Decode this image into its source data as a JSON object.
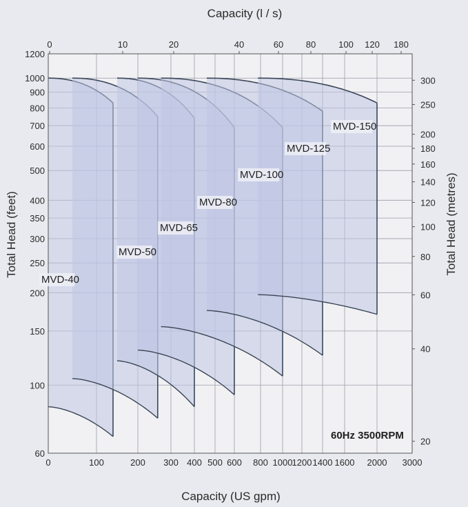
{
  "chart_data": {
    "type": "area",
    "title": "",
    "xlabel": "Capacity (US gpm)",
    "x2label": "Capacity (l / s)",
    "ylabel": "Total Head (feet)",
    "y2label": "Total Head (metres)",
    "annotation": "60Hz  3500RPM",
    "grid": true,
    "x_scale": "custom",
    "y_scale": "log",
    "xlim": [
      0,
      3000
    ],
    "ylim": [
      60,
      1200
    ],
    "x_ticks": [
      {
        "v": 0,
        "label": "0"
      },
      {
        "v": 100,
        "label": "100"
      },
      {
        "v": 200,
        "label": "200"
      },
      {
        "v": 300,
        "label": "300"
      },
      {
        "v": 400,
        "label": "400"
      },
      {
        "v": 500,
        "label": "500"
      },
      {
        "v": 600,
        "label": "600"
      },
      {
        "v": 800,
        "label": "800"
      },
      {
        "v": 1000,
        "label": "1000"
      },
      {
        "v": 1200,
        "label": "1200"
      },
      {
        "v": 1400,
        "label": "1400"
      },
      {
        "v": 1600,
        "label": "1600"
      },
      {
        "v": 2000,
        "label": "2000"
      },
      {
        "v": 3000,
        "label": "3000"
      }
    ],
    "x2_ticks": [
      {
        "v": 0,
        "label": "0"
      },
      {
        "v": 10,
        "label": "10"
      },
      {
        "v": 20,
        "label": "20"
      },
      {
        "v": 40,
        "label": "40"
      },
      {
        "v": 60,
        "label": "60"
      },
      {
        "v": 80,
        "label": "80"
      },
      {
        "v": 100,
        "label": "100"
      },
      {
        "v": 120,
        "label": "120"
      },
      {
        "v": 180,
        "label": "180"
      }
    ],
    "y_ticks": [
      60,
      100,
      150,
      200,
      250,
      300,
      350,
      400,
      500,
      600,
      700,
      800,
      900,
      1000,
      1200
    ],
    "y2_ticks": [
      20,
      40,
      60,
      80,
      100,
      120,
      140,
      160,
      180,
      200,
      250,
      300
    ],
    "series": [
      {
        "name": "MVD-40",
        "q_start": 0,
        "q_end": 140,
        "h_max": 1000,
        "h_top_end": 830,
        "h_min": 85,
        "h_bottom_end": 68
      },
      {
        "name": "MVD-50",
        "q_start": 50,
        "q_end": 260,
        "h_max": 1000,
        "h_top_end": 750,
        "h_min": 105,
        "h_bottom_end": 78
      },
      {
        "name": "MVD-65",
        "q_start": 150,
        "q_end": 400,
        "h_max": 1000,
        "h_top_end": 740,
        "h_min": 120,
        "h_bottom_end": 85
      },
      {
        "name": "MVD-80",
        "q_start": 200,
        "q_end": 600,
        "h_max": 1000,
        "h_top_end": 690,
        "h_min": 130,
        "h_bottom_end": 93
      },
      {
        "name": "MVD-100",
        "q_start": 270,
        "q_end": 1000,
        "h_max": 1000,
        "h_top_end": 690,
        "h_min": 155,
        "h_bottom_end": 107
      },
      {
        "name": "MVD-125",
        "q_start": 460,
        "q_end": 1400,
        "h_max": 1000,
        "h_top_end": 780,
        "h_min": 175,
        "h_bottom_end": 125
      },
      {
        "name": "MVD-150",
        "q_start": 780,
        "q_end": 2000,
        "h_max": 1000,
        "h_top_end": 830,
        "h_min": 197,
        "h_bottom_end": 170
      }
    ]
  }
}
